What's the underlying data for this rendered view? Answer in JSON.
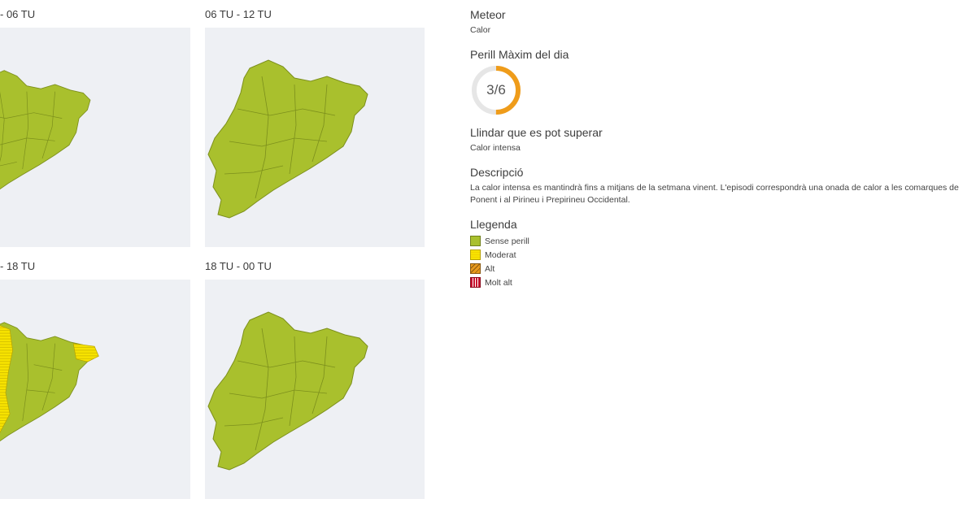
{
  "panels": [
    {
      "label": "- 06 TU"
    },
    {
      "label": "06 TU - 12 TU"
    },
    {
      "label": "- 18 TU"
    },
    {
      "label": "18 TU - 00 TU"
    }
  ],
  "info": {
    "meteor_title": "Meteor",
    "meteor_value": "Calor",
    "max_danger_title": "Perill Màxim del dia",
    "max_danger_value": "3/6",
    "max_danger_fraction": 0.5,
    "threshold_title": "Llindar que es pot superar",
    "threshold_value": "Calor intensa",
    "description_title": "Descripció",
    "description_text": "La calor intensa es mantindrà fins a mitjans de la setmana vinent. L'episodi correspondrà una onada de calor a les comarques de Ponent i al Pirineu i Prepirineu Occidental.",
    "legend_title": "Llegenda"
  },
  "legend": [
    {
      "label": "Sense perill",
      "color": "#a9c02d"
    },
    {
      "label": "Moderat",
      "color": "#f7e300"
    },
    {
      "label": "Alt",
      "color": "#e89a1d"
    },
    {
      "label": "Molt alt",
      "color": "#c8102e"
    }
  ],
  "colors": {
    "map_background": "#eef0f4",
    "region_green": "#a9c02d",
    "gauge_accent": "#ef9c1a",
    "gauge_track": "#e6e6e6"
  }
}
